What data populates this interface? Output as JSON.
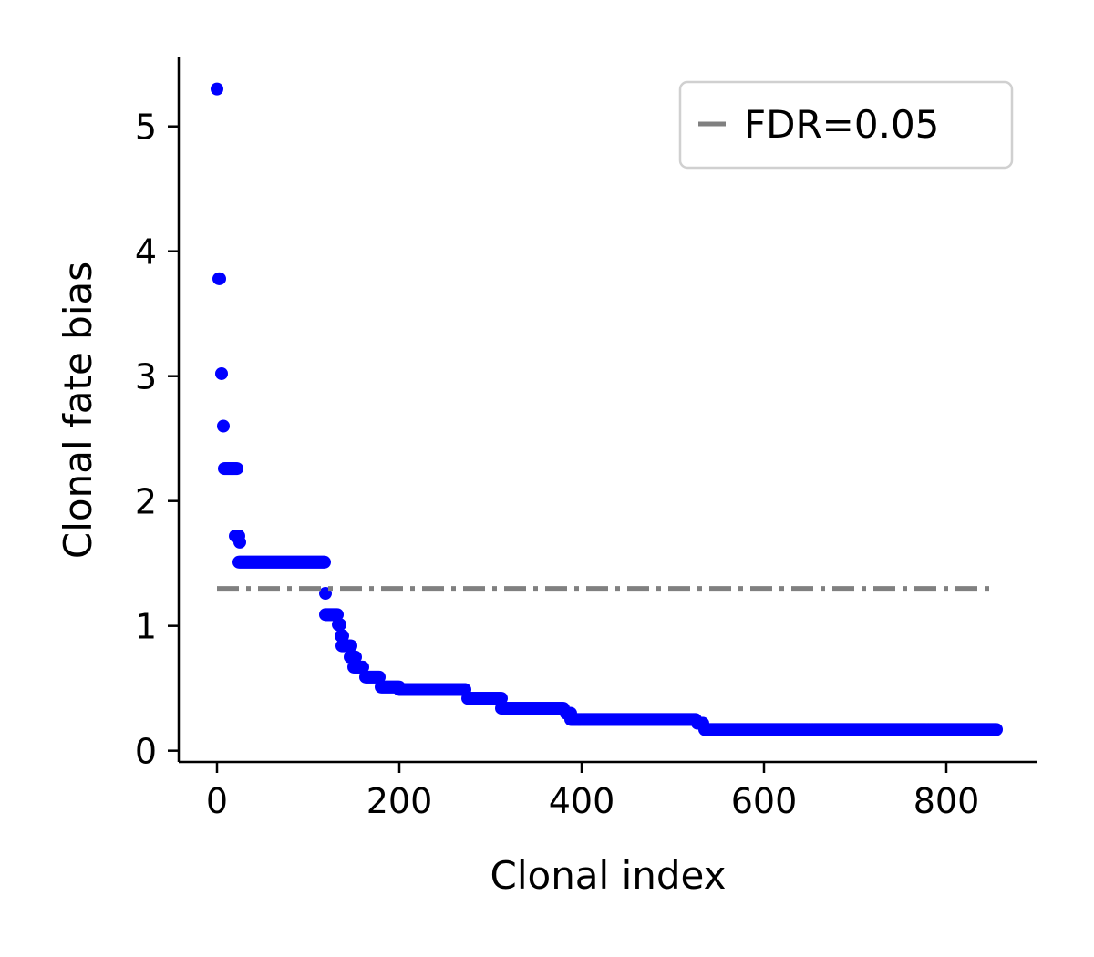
{
  "chart_data": {
    "type": "scatter",
    "xlabel": "Clonal index",
    "ylabel": "Clonal fate bias",
    "xlim": [
      -42,
      900
    ],
    "ylim": [
      -0.09,
      5.56
    ],
    "xticks": [
      0,
      200,
      400,
      600,
      800
    ],
    "yticks": [
      0,
      1,
      2,
      3,
      4,
      5
    ],
    "grid": false,
    "legend": {
      "placement": "top-right",
      "entries": [
        "FDR=0.05"
      ]
    },
    "colors": {
      "points": "#0000ff",
      "threshold": "#808080"
    },
    "threshold": {
      "name": "FDR=0.05",
      "y": 1.3,
      "x": [
        0,
        850
      ]
    },
    "segments": [
      {
        "x": [
          0,
          0
        ],
        "y": 5.3
      },
      {
        "x": [
          2,
          3
        ],
        "y": 3.78
      },
      {
        "x": [
          5,
          5
        ],
        "y": 3.02
      },
      {
        "x": [
          7,
          7
        ],
        "y": 2.6
      },
      {
        "x": [
          8,
          22
        ],
        "y": 2.26
      },
      {
        "x": [
          20,
          24
        ],
        "y": 1.72
      },
      {
        "x": [
          25,
          25
        ],
        "y": 1.67
      },
      {
        "x": [
          24,
          118
        ],
        "y": 1.51
      },
      {
        "x": [
          119,
          119
        ],
        "y": 1.26
      },
      {
        "x": [
          119,
          132
        ],
        "y": 1.09
      },
      {
        "x": [
          133,
          135
        ],
        "y": 1.01
      },
      {
        "x": [
          136,
          138
        ],
        "y": 0.92
      },
      {
        "x": [
          137,
          147
        ],
        "y": 0.84
      },
      {
        "x": [
          146,
          152
        ],
        "y": 0.75
      },
      {
        "x": [
          150,
          160
        ],
        "y": 0.67
      },
      {
        "x": [
          163,
          178
        ],
        "y": 0.59
      },
      {
        "x": [
          180,
          200
        ],
        "y": 0.51
      },
      {
        "x": [
          200,
          272
        ],
        "y": 0.49
      },
      {
        "x": [
          275,
          312
        ],
        "y": 0.42
      },
      {
        "x": [
          312,
          380
        ],
        "y": 0.34
      },
      {
        "x": [
          383,
          388
        ],
        "y": 0.3
      },
      {
        "x": [
          388,
          525
        ],
        "y": 0.25
      },
      {
        "x": [
          527,
          533
        ],
        "y": 0.22
      },
      {
        "x": [
          535,
          855
        ],
        "y": 0.17
      }
    ]
  }
}
